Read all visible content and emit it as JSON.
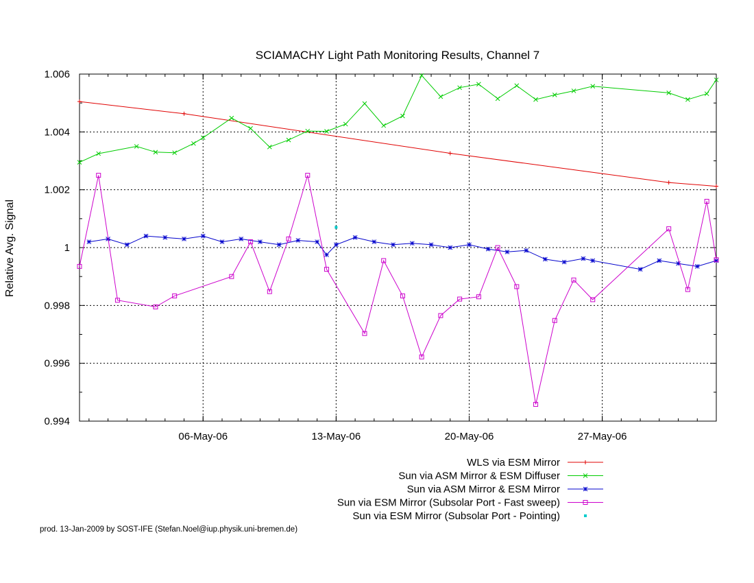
{
  "chart_data": {
    "type": "line",
    "title": "SCIAMACHY Light Path Monitoring Results, Channel 7",
    "xlabel": "",
    "ylabel": "Relative Avg. Signal",
    "x_unit": "date",
    "xlim": [
      "2006-04-29T12:00",
      "2006-06-02T00:00"
    ],
    "ylim": [
      0.994,
      1.006
    ],
    "x_ticks": [
      {
        "x": "2006-05-06",
        "label": "06-May-06"
      },
      {
        "x": "2006-05-13",
        "label": "13-May-06"
      },
      {
        "x": "2006-05-20",
        "label": "20-May-06"
      },
      {
        "x": "2006-05-27",
        "label": "27-May-06"
      }
    ],
    "y_ticks": [
      {
        "y": 0.994,
        "label": "0.994"
      },
      {
        "y": 0.996,
        "label": "0.996"
      },
      {
        "y": 0.998,
        "label": "0.998"
      },
      {
        "y": 1.0,
        "label": "1"
      },
      {
        "y": 1.002,
        "label": "1.002"
      },
      {
        "y": 1.004,
        "label": "1.004"
      },
      {
        "y": 1.006,
        "label": "1.006"
      }
    ],
    "grid": true,
    "legend_position": "bottom-right",
    "series": [
      {
        "name": "WLS via ESM Mirror",
        "color": "#e00000",
        "marker": "plus",
        "points": [
          [
            "2006-04-29T12:00",
            1.00505
          ],
          [
            "2006-05-05T00:00",
            1.00463
          ],
          [
            "2006-05-19T00:00",
            1.00326
          ],
          [
            "2006-05-30T12:00",
            1.00225
          ],
          [
            "2006-06-02T00:00",
            1.00212
          ]
        ]
      },
      {
        "name": "Sun via ASM Mirror & ESM Diffuser",
        "color": "#00cc00",
        "marker": "x",
        "points": [
          [
            "2006-04-29T12:00",
            1.00295
          ],
          [
            "2006-04-30T12:00",
            1.00325
          ],
          [
            "2006-05-02T12:00",
            1.0035
          ],
          [
            "2006-05-03T12:00",
            1.0033
          ],
          [
            "2006-05-04T12:00",
            1.00328
          ],
          [
            "2006-05-05T12:00",
            1.0036
          ],
          [
            "2006-05-06T00:00",
            1.0038
          ],
          [
            "2006-05-07T12:00",
            1.00448
          ],
          [
            "2006-05-08T12:00",
            1.00412
          ],
          [
            "2006-05-09T12:00",
            1.00348
          ],
          [
            "2006-05-10T12:00",
            1.00372
          ],
          [
            "2006-05-11T12:00",
            1.00403
          ],
          [
            "2006-05-12T12:00",
            1.00402
          ],
          [
            "2006-05-13T12:00",
            1.00427
          ],
          [
            "2006-05-14T12:00",
            1.00498
          ],
          [
            "2006-05-15T12:00",
            1.00422
          ],
          [
            "2006-05-16T12:00",
            1.00455
          ],
          [
            "2006-05-17T12:00",
            1.00595
          ],
          [
            "2006-05-18T12:00",
            1.00522
          ],
          [
            "2006-05-19T12:00",
            1.00553
          ],
          [
            "2006-05-20T12:00",
            1.00565
          ],
          [
            "2006-05-21T12:00",
            1.00515
          ],
          [
            "2006-05-22T12:00",
            1.0056
          ],
          [
            "2006-05-23T12:00",
            1.00512
          ],
          [
            "2006-05-24T12:00",
            1.00528
          ],
          [
            "2006-05-25T12:00",
            1.00542
          ],
          [
            "2006-05-26T12:00",
            1.00558
          ],
          [
            "2006-05-30T12:00",
            1.00535
          ],
          [
            "2006-05-31T12:00",
            1.00512
          ],
          [
            "2006-06-01T12:00",
            1.00532
          ],
          [
            "2006-06-02T00:00",
            1.0058
          ]
        ]
      },
      {
        "name": "Sun via ASM Mirror & ESM Mirror",
        "color": "#0000cc",
        "marker": "star",
        "points": [
          [
            "2006-04-30T00:00",
            1.0002
          ],
          [
            "2006-05-01T00:00",
            1.0003
          ],
          [
            "2006-05-02T00:00",
            1.0001
          ],
          [
            "2006-05-03T00:00",
            1.0004
          ],
          [
            "2006-05-04T00:00",
            1.00035
          ],
          [
            "2006-05-05T00:00",
            1.0003
          ],
          [
            "2006-05-06T00:00",
            1.0004
          ],
          [
            "2006-05-07T00:00",
            1.0002
          ],
          [
            "2006-05-08T00:00",
            1.0003
          ],
          [
            "2006-05-09T00:00",
            1.0002
          ],
          [
            "2006-05-10T00:00",
            1.0001
          ],
          [
            "2006-05-11T00:00",
            1.00025
          ],
          [
            "2006-05-12T00:00",
            1.0002
          ],
          [
            "2006-05-12T12:00",
            0.99975
          ],
          [
            "2006-05-13T00:00",
            1.0001
          ],
          [
            "2006-05-14T00:00",
            1.00035
          ],
          [
            "2006-05-15T00:00",
            1.0002
          ],
          [
            "2006-05-16T00:00",
            1.0001
          ],
          [
            "2006-05-17T00:00",
            1.00015
          ],
          [
            "2006-05-18T00:00",
            1.0001
          ],
          [
            "2006-05-19T00:00",
            1.0
          ],
          [
            "2006-05-20T00:00",
            1.0001
          ],
          [
            "2006-05-21T00:00",
            0.99995
          ],
          [
            "2006-05-22T00:00",
            0.99985
          ],
          [
            "2006-05-23T00:00",
            0.9999
          ],
          [
            "2006-05-24T00:00",
            0.9996
          ],
          [
            "2006-05-25T00:00",
            0.9995
          ],
          [
            "2006-05-26T00:00",
            0.99962
          ],
          [
            "2006-05-26T12:00",
            0.99955
          ],
          [
            "2006-05-29T00:00",
            0.99925
          ],
          [
            "2006-05-30T00:00",
            0.99955
          ],
          [
            "2006-05-31T00:00",
            0.99945
          ],
          [
            "2006-06-01T00:00",
            0.99935
          ],
          [
            "2006-06-02T00:00",
            0.99955
          ]
        ]
      },
      {
        "name": "Sun via ESM Mirror (Subsolar Port - Fast sweep)",
        "color": "#cc00cc",
        "marker": "square",
        "points": [
          [
            "2006-04-29T12:00",
            0.99935
          ],
          [
            "2006-04-30T12:00",
            1.0025
          ],
          [
            "2006-05-01T12:00",
            0.99818
          ],
          [
            "2006-05-03T12:00",
            0.99795
          ],
          [
            "2006-05-04T12:00",
            0.99833
          ],
          [
            "2006-05-07T12:00",
            0.999
          ],
          [
            "2006-05-08T12:00",
            1.0002
          ],
          [
            "2006-05-09T12:00",
            0.99848
          ],
          [
            "2006-05-10T12:00",
            1.0003
          ],
          [
            "2006-05-11T12:00",
            1.0025
          ],
          [
            "2006-05-12T12:00",
            0.99925
          ],
          [
            "2006-05-14T12:00",
            0.99703
          ],
          [
            "2006-05-15T12:00",
            0.99955
          ],
          [
            "2006-05-16T12:00",
            0.99833
          ],
          [
            "2006-05-17T12:00",
            0.99622
          ],
          [
            "2006-05-18T12:00",
            0.99765
          ],
          [
            "2006-05-19T12:00",
            0.99822
          ],
          [
            "2006-05-20T12:00",
            0.9983
          ],
          [
            "2006-05-21T12:00",
            1.0
          ],
          [
            "2006-05-22T12:00",
            0.99865
          ],
          [
            "2006-05-23T12:00",
            0.99458
          ],
          [
            "2006-05-24T12:00",
            0.99748
          ],
          [
            "2006-05-25T12:00",
            0.99888
          ],
          [
            "2006-05-26T12:00",
            0.9982
          ],
          [
            "2006-05-30T12:00",
            1.00065
          ],
          [
            "2006-05-31T12:00",
            0.99855
          ],
          [
            "2006-06-01T12:00",
            1.0016
          ],
          [
            "2006-06-02T00:00",
            0.99958
          ]
        ]
      },
      {
        "name": "Sun via ESM Mirror (Subsolar Port - Pointing)",
        "color": "#00cccc",
        "marker": "dot",
        "points": [
          [
            "2006-05-13T00:00",
            1.0007
          ]
        ]
      }
    ]
  },
  "credit": "prod. 13-Jan-2009 by SOST-IFE (Stefan.Noel@iup.physik.uni-bremen.de)"
}
